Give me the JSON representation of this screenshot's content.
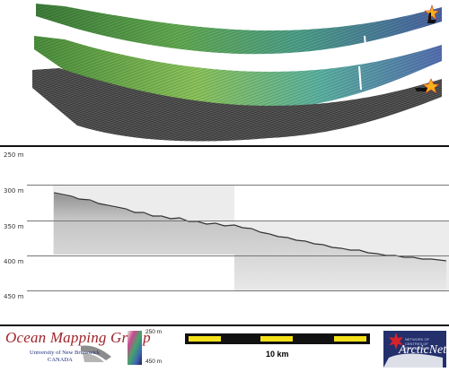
{
  "depth_axis": {
    "labels": [
      "250 m",
      "300 m",
      "350 m",
      "400 m",
      "450 m"
    ]
  },
  "legend": {
    "depth_max_label": "250 m",
    "depth_min_label": "450 m"
  },
  "scale_bar": {
    "label": "10 km",
    "segment_colors": [
      "#f5e11a",
      "#111111",
      "#f5e11a",
      "#111111",
      "#f5e11a"
    ]
  },
  "branding": {
    "group_name": "Ocean Mapping Group",
    "university": "University of New Brunswick",
    "country": "CANADA",
    "partner_small": "NETWORK OF CENTRES OF EXCELLENCE",
    "partner_name": "ArcticNet"
  },
  "colors": {
    "accent_red": "#a0232a",
    "navy": "#24306c",
    "swath_green": "#4f9a47",
    "swath_blue": "#4d6aa8"
  },
  "icons": [
    "survey-vessel-icon",
    "maple-leaf-icon",
    "star-marker-icon"
  ]
}
